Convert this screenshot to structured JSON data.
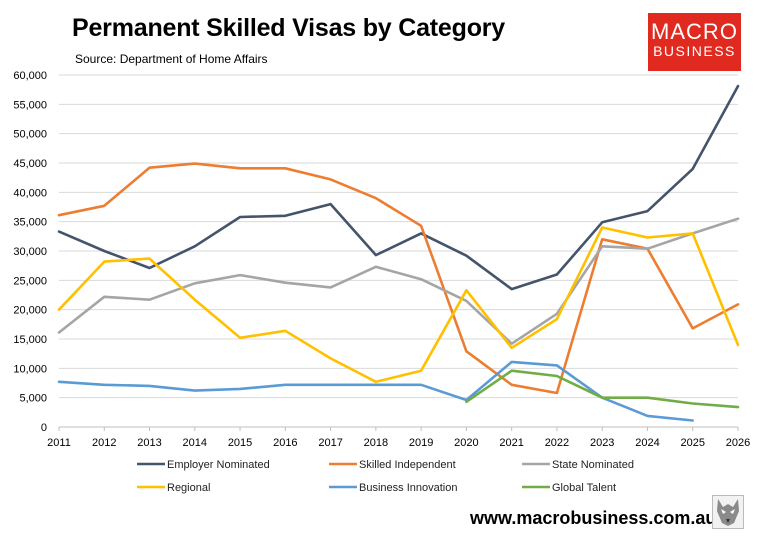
{
  "header": {
    "title": "Permanent Skilled Visas by Category",
    "subtitle": "Source: Department of Home Affairs"
  },
  "logo": {
    "line1": "MACRO",
    "line2": "BUSINESS",
    "color": "#e02a1f"
  },
  "footer": {
    "website": "www.macrobusiness.com.au"
  },
  "chart_data": {
    "type": "line",
    "x": [
      "2011",
      "2012",
      "2013",
      "2014",
      "2015",
      "2016",
      "2017",
      "2018",
      "2019",
      "2020",
      "2021",
      "2022",
      "2023",
      "2024",
      "2025",
      "2026"
    ],
    "ylim": [
      0,
      60000
    ],
    "yticks": [
      0,
      5000,
      10000,
      15000,
      20000,
      25000,
      30000,
      35000,
      40000,
      45000,
      50000,
      55000,
      60000
    ],
    "ytick_labels": [
      "0",
      "5,000",
      "10,000",
      "15,000",
      "20,000",
      "25,000",
      "30,000",
      "35,000",
      "40,000",
      "45,000",
      "50,000",
      "55,000",
      "60,000"
    ],
    "grid": true,
    "legend_position": "bottom",
    "series": [
      {
        "name": "Employer Nominated",
        "color": "#44546a",
        "values": [
          33300,
          30000,
          27100,
          30800,
          35800,
          36000,
          38000,
          29300,
          33000,
          29200,
          23500,
          26000,
          34900,
          36800,
          44000,
          58100
        ]
      },
      {
        "name": "Skilled Independent",
        "color": "#ed7d31",
        "values": [
          36100,
          37700,
          44200,
          44900,
          44100,
          44100,
          42200,
          39000,
          34300,
          12900,
          7200,
          5800,
          32000,
          30400,
          16800,
          20900
        ]
      },
      {
        "name": "State Nominated",
        "color": "#a5a5a5",
        "values": [
          16100,
          22200,
          21700,
          24500,
          25900,
          24600,
          23800,
          27300,
          25200,
          21500,
          14200,
          19300,
          30800,
          30400,
          33000,
          35500
        ]
      },
      {
        "name": "Regional",
        "color": "#ffc000",
        "values": [
          20000,
          28200,
          28700,
          21700,
          15200,
          16400,
          11700,
          7700,
          9600,
          23300,
          13500,
          18400,
          34000,
          32300,
          33000,
          14000
        ]
      },
      {
        "name": "Business Innovation",
        "color": "#5b9bd5",
        "values": [
          7700,
          7200,
          7000,
          6200,
          6500,
          7200,
          7200,
          7200,
          7200,
          4600,
          11100,
          10500,
          5000,
          1900,
          1100,
          null
        ]
      },
      {
        "name": "Global Talent",
        "color": "#70ad47",
        "values": [
          null,
          null,
          null,
          null,
          null,
          null,
          null,
          null,
          null,
          4300,
          9600,
          8700,
          5000,
          5000,
          4000,
          3400
        ]
      }
    ]
  }
}
